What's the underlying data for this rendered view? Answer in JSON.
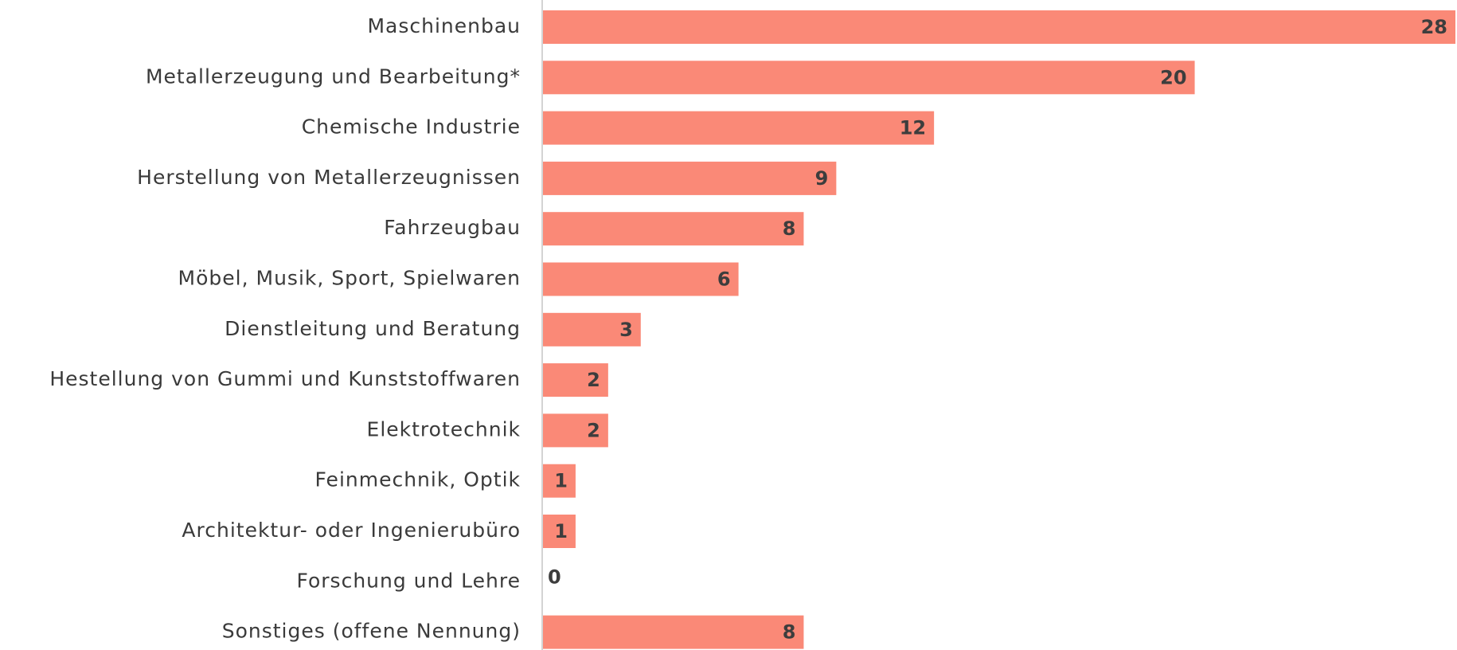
{
  "chart_data": {
    "type": "barh",
    "categories": [
      "Maschinenbau",
      "Metallerzeugung und Bearbeitung*",
      "Chemische Industrie",
      "Herstellung von Metallerzeugnissen",
      "Fahrzeugbau",
      "Möbel, Musik, Sport, Spielwaren",
      "Dienstleitung und Beratung",
      "Hestellung von Gummi und Kunststoffwaren",
      "Elektrotechnik",
      "Feinmechnik, Optik",
      "Architektur- oder Ingenierubüro",
      "Forschung und Lehre",
      "Sonstiges (offene Nennung)"
    ],
    "values": [
      28,
      20,
      12,
      9,
      8,
      6,
      3,
      2,
      2,
      1,
      1,
      0,
      8
    ],
    "color": "#fa8977"
  }
}
